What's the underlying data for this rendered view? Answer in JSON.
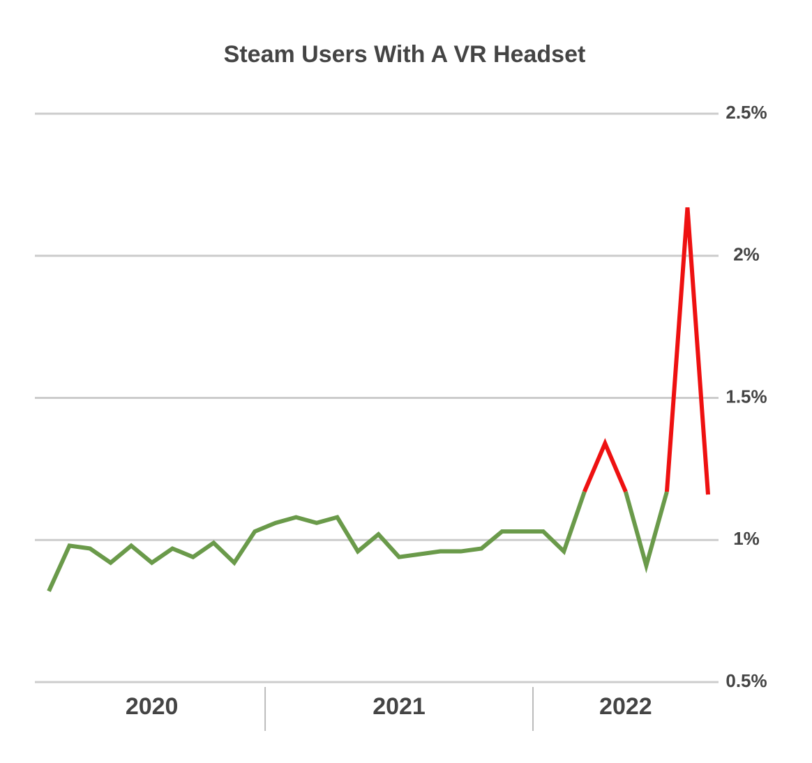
{
  "chart_data": {
    "type": "line",
    "title": "Steam Users With A VR Headset",
    "categories": [
      null,
      null,
      null,
      null,
      null,
      null,
      null,
      null,
      null,
      null,
      null,
      null,
      null,
      null,
      null,
      null,
      null,
      null,
      null,
      null,
      null,
      null,
      null,
      null,
      null,
      null,
      null,
      null,
      null,
      null,
      null,
      null,
      null
    ],
    "series": [
      {
        "color": "#6a9a4a",
        "values": [
          0.82,
          0.98,
          0.97,
          0.92,
          0.98,
          0.92,
          0.97,
          0.94,
          0.99,
          0.92,
          1.03,
          1.06,
          1.08,
          1.06,
          1.08,
          0.96,
          1.02,
          0.94,
          0.95,
          0.96,
          0.96,
          0.97,
          1.03,
          1.03,
          1.03,
          0.96,
          1.17,
          null,
          1.17,
          0.91,
          1.17,
          null,
          1.16
        ]
      },
      {
        "color": "#ee1111",
        "values": [
          null,
          null,
          null,
          null,
          null,
          null,
          null,
          null,
          null,
          null,
          null,
          null,
          null,
          null,
          null,
          null,
          null,
          null,
          null,
          null,
          null,
          null,
          null,
          null,
          null,
          null,
          1.17,
          1.34,
          1.17,
          null,
          1.17,
          2.17,
          1.16
        ]
      }
    ],
    "year_groups": [
      {
        "label": "2020",
        "start": 0,
        "end": 10
      },
      {
        "label": "2021",
        "start": 11,
        "end": 23
      },
      {
        "label": "2022",
        "start": 24,
        "end": 32
      }
    ],
    "ylim": [
      0.5,
      2.5
    ],
    "yticks": [
      {
        "value": 0.5,
        "label": "0.5%"
      },
      {
        "value": 1,
        "label": "1%"
      },
      {
        "value": 1.5,
        "label": "1.5%"
      },
      {
        "value": 2,
        "label": "2%"
      },
      {
        "value": 2.5,
        "label": "2.5%"
      }
    ],
    "grid": true
  }
}
